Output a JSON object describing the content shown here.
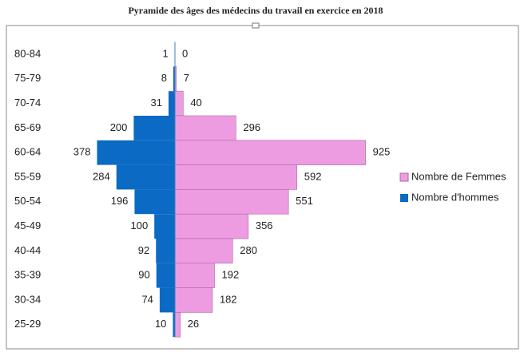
{
  "chart_data": {
    "type": "pyramid",
    "title": "Pyramide des âges des médecins du travail en exercice en 2018",
    "categories": [
      "80-84",
      "75-79",
      "70-74",
      "65-69",
      "60-64",
      "55-59",
      "50-54",
      "45-49",
      "40-44",
      "35-39",
      "30-34",
      "25-29"
    ],
    "series": [
      {
        "name": "Nombre de Femmes",
        "color": "#ee9ce1",
        "side": "right",
        "values": [
          0,
          7,
          40,
          296,
          925,
          592,
          551,
          356,
          280,
          192,
          182,
          26
        ]
      },
      {
        "name": "Nombre d'hommes",
        "color": "#0b6ac4",
        "side": "left",
        "values": [
          1,
          8,
          31,
          200,
          378,
          284,
          196,
          100,
          92,
          90,
          74,
          10
        ]
      }
    ],
    "legend": "right"
  }
}
